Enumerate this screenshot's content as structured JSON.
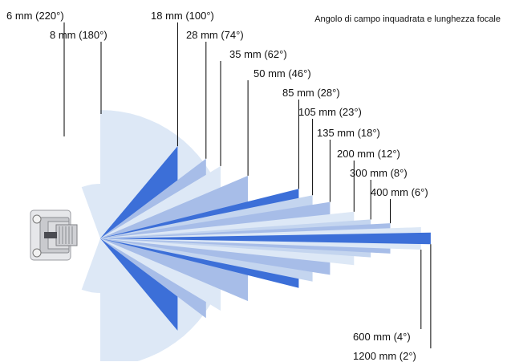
{
  "title": "Angolo di campo inquadrata e lunghezza focale",
  "colors": {
    "pale": "#dde8f6",
    "light": "#c4d5ef",
    "mid": "#a7bde8",
    "strong": "#3c6fd8",
    "line": "#000000"
  },
  "lenses": [
    {
      "label": "6 mm (220°)",
      "focal_mm": 6,
      "angle_deg": 220,
      "shade": "pale"
    },
    {
      "label": "8 mm (180°)",
      "focal_mm": 8,
      "angle_deg": 180,
      "shade": "pale"
    },
    {
      "label": "18 mm (100°)",
      "focal_mm": 18,
      "angle_deg": 100,
      "shade": "strong"
    },
    {
      "label": "28 mm (74°)",
      "focal_mm": 28,
      "angle_deg": 74,
      "shade": "mid"
    },
    {
      "label": "35 mm (62°)",
      "focal_mm": 35,
      "angle_deg": 62,
      "shade": "pale"
    },
    {
      "label": "50 mm (46°)",
      "focal_mm": 50,
      "angle_deg": 46,
      "shade": "mid"
    },
    {
      "label": "85 mm (28°)",
      "focal_mm": 85,
      "angle_deg": 28,
      "shade": "strong"
    },
    {
      "label": "105 mm (23°)",
      "focal_mm": 105,
      "angle_deg": 23,
      "shade": "light"
    },
    {
      "label": "135 mm (18°)",
      "focal_mm": 135,
      "angle_deg": 18,
      "shade": "mid"
    },
    {
      "label": "200 mm (12°)",
      "focal_mm": 200,
      "angle_deg": 12,
      "shade": "pale"
    },
    {
      "label": "300 mm (8°)",
      "focal_mm": 300,
      "angle_deg": 8,
      "shade": "light"
    },
    {
      "label": "400 mm (6°)",
      "focal_mm": 400,
      "angle_deg": 6,
      "shade": "mid"
    },
    {
      "label": "600 mm (4°)",
      "focal_mm": 600,
      "angle_deg": 4,
      "shade": "pale"
    },
    {
      "label": "1200 mm (2°)",
      "focal_mm": 1200,
      "angle_deg": 2,
      "shade": "strong"
    }
  ]
}
